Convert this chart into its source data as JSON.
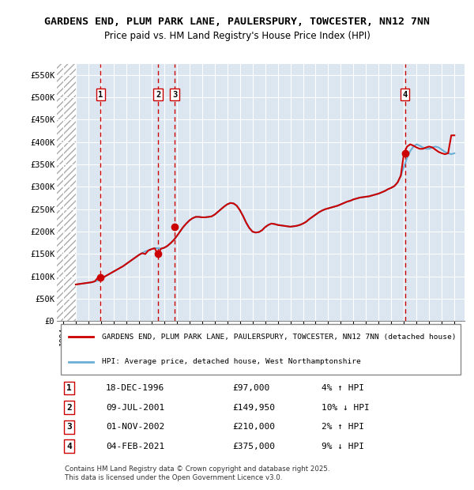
{
  "title_line1": "GARDENS END, PLUM PARK LANE, PAULERSPURY, TOWCESTER, NN12 7NN",
  "title_line2": "Price paid vs. HM Land Registry's House Price Index (HPI)",
  "ylabel": "",
  "background_color": "#dce6f1",
  "plot_bg_color": "#dce6f1",
  "hatch_region_end": 1995.0,
  "ylim": [
    0,
    575000
  ],
  "yticks": [
    0,
    50000,
    100000,
    150000,
    200000,
    250000,
    300000,
    350000,
    400000,
    450000,
    500000,
    550000
  ],
  "xlim": [
    1993.5,
    2025.8
  ],
  "sale_dates": [
    1996.96,
    2001.52,
    2002.84,
    2021.09
  ],
  "sale_prices": [
    97000,
    149950,
    210000,
    375000
  ],
  "sale_labels": [
    "1",
    "2",
    "3",
    "4"
  ],
  "vline_color": "#cc0000",
  "dot_color": "#cc0000",
  "hpi_line_color": "#6baed6",
  "price_line_color": "#cc0000",
  "legend_label_price": "GARDENS END, PLUM PARK LANE, PAULERSPURY, TOWCESTER, NN12 7NN (detached house)",
  "legend_label_hpi": "HPI: Average price, detached house, West Northamptonshire",
  "table_entries": [
    {
      "num": "1",
      "date": "18-DEC-1996",
      "price": "£97,000",
      "hpi": "4% ↑ HPI"
    },
    {
      "num": "2",
      "date": "09-JUL-2001",
      "price": "£149,950",
      "hpi": "10% ↓ HPI"
    },
    {
      "num": "3",
      "date": "01-NOV-2002",
      "price": "£210,000",
      "hpi": "2% ↑ HPI"
    },
    {
      "num": "4",
      "date": "04-FEB-2021",
      "price": "£375,000",
      "hpi": "9% ↓ HPI"
    }
  ],
  "footer": "Contains HM Land Registry data © Crown copyright and database right 2025.\nThis data is licensed under the Open Government Licence v3.0.",
  "hpi_data_x": [
    1995.0,
    1995.25,
    1995.5,
    1995.75,
    1996.0,
    1996.25,
    1996.5,
    1996.75,
    1997.0,
    1997.25,
    1997.5,
    1997.75,
    1998.0,
    1998.25,
    1998.5,
    1998.75,
    1999.0,
    1999.25,
    1999.5,
    1999.75,
    2000.0,
    2000.25,
    2000.5,
    2000.75,
    2001.0,
    2001.25,
    2001.5,
    2001.75,
    2002.0,
    2002.25,
    2002.5,
    2002.75,
    2003.0,
    2003.25,
    2003.5,
    2003.75,
    2004.0,
    2004.25,
    2004.5,
    2004.75,
    2005.0,
    2005.25,
    2005.5,
    2005.75,
    2006.0,
    2006.25,
    2006.5,
    2006.75,
    2007.0,
    2007.25,
    2007.5,
    2007.75,
    2008.0,
    2008.25,
    2008.5,
    2008.75,
    2009.0,
    2009.25,
    2009.5,
    2009.75,
    2010.0,
    2010.25,
    2010.5,
    2010.75,
    2011.0,
    2011.25,
    2011.5,
    2011.75,
    2012.0,
    2012.25,
    2012.5,
    2012.75,
    2013.0,
    2013.25,
    2013.5,
    2013.75,
    2014.0,
    2014.25,
    2014.5,
    2014.75,
    2015.0,
    2015.25,
    2015.5,
    2015.75,
    2016.0,
    2016.25,
    2016.5,
    2016.75,
    2017.0,
    2017.25,
    2017.5,
    2017.75,
    2018.0,
    2018.25,
    2018.5,
    2018.75,
    2019.0,
    2019.25,
    2019.5,
    2019.75,
    2020.0,
    2020.25,
    2020.5,
    2020.75,
    2021.0,
    2021.25,
    2021.5,
    2021.75,
    2022.0,
    2022.25,
    2022.5,
    2022.75,
    2023.0,
    2023.25,
    2023.5,
    2023.75,
    2024.0,
    2024.25,
    2024.5,
    2024.75,
    2025.0
  ],
  "hpi_data_y": [
    82000,
    83000,
    84000,
    85000,
    86000,
    87000,
    89000,
    91000,
    95000,
    99000,
    103000,
    107000,
    111000,
    115000,
    119000,
    123000,
    128000,
    133000,
    138000,
    143000,
    148000,
    152000,
    156000,
    158000,
    161000,
    163000,
    163000,
    162000,
    164000,
    168000,
    174000,
    181000,
    190000,
    200000,
    210000,
    218000,
    225000,
    230000,
    233000,
    233000,
    232000,
    232000,
    233000,
    234000,
    238000,
    244000,
    250000,
    256000,
    261000,
    264000,
    263000,
    258000,
    248000,
    235000,
    220000,
    208000,
    200000,
    198000,
    199000,
    203000,
    210000,
    215000,
    218000,
    217000,
    215000,
    214000,
    213000,
    212000,
    211000,
    212000,
    213000,
    215000,
    218000,
    222000,
    228000,
    233000,
    238000,
    243000,
    247000,
    250000,
    252000,
    254000,
    256000,
    258000,
    261000,
    264000,
    267000,
    269000,
    272000,
    274000,
    276000,
    277000,
    278000,
    279000,
    281000,
    283000,
    285000,
    288000,
    291000,
    295000,
    298000,
    302000,
    310000,
    325000,
    345000,
    365000,
    380000,
    390000,
    395000,
    392000,
    388000,
    385000,
    385000,
    388000,
    390000,
    388000,
    383000,
    378000,
    375000,
    373000,
    375000
  ],
  "price_data_x": [
    1995.0,
    1995.25,
    1995.5,
    1995.75,
    1996.0,
    1996.25,
    1996.5,
    1996.75,
    1997.0,
    1997.25,
    1997.5,
    1997.75,
    1998.0,
    1998.25,
    1998.5,
    1998.75,
    1999.0,
    1999.25,
    1999.5,
    1999.75,
    2000.0,
    2000.25,
    2000.5,
    2000.75,
    2001.0,
    2001.25,
    2001.5,
    2001.75,
    2002.0,
    2002.25,
    2002.5,
    2002.75,
    2003.0,
    2003.25,
    2003.5,
    2003.75,
    2004.0,
    2004.25,
    2004.5,
    2004.75,
    2005.0,
    2005.25,
    2005.5,
    2005.75,
    2006.0,
    2006.25,
    2006.5,
    2006.75,
    2007.0,
    2007.25,
    2007.5,
    2007.75,
    2008.0,
    2008.25,
    2008.5,
    2008.75,
    2009.0,
    2009.25,
    2009.5,
    2009.75,
    2010.0,
    2010.25,
    2010.5,
    2010.75,
    2011.0,
    2011.25,
    2011.5,
    2011.75,
    2012.0,
    2012.25,
    2012.5,
    2012.75,
    2013.0,
    2013.25,
    2013.5,
    2013.75,
    2014.0,
    2014.25,
    2014.5,
    2014.75,
    2015.0,
    2015.25,
    2015.5,
    2015.75,
    2016.0,
    2016.25,
    2016.5,
    2016.75,
    2017.0,
    2017.25,
    2017.5,
    2017.75,
    2018.0,
    2018.25,
    2018.5,
    2018.75,
    2019.0,
    2019.25,
    2019.5,
    2019.75,
    2020.0,
    2020.25,
    2020.5,
    2020.75,
    2021.0,
    2021.25,
    2021.5,
    2021.75,
    2022.0,
    2022.25,
    2022.5,
    2022.75,
    2023.0,
    2023.25,
    2023.5,
    2023.75,
    2024.0,
    2024.25,
    2024.5,
    2024.75,
    2025.0
  ],
  "price_data_y": [
    82000,
    83000,
    84000,
    85000,
    86000,
    87000,
    89000,
    97000,
    95000,
    99000,
    103000,
    107000,
    111000,
    115000,
    119000,
    123000,
    128000,
    133000,
    138000,
    143000,
    148000,
    152000,
    149950,
    158000,
    161000,
    163000,
    149950,
    162000,
    164000,
    168000,
    174000,
    181000,
    190000,
    200000,
    210000,
    218000,
    225000,
    230000,
    233000,
    233000,
    232000,
    232000,
    233000,
    234000,
    238000,
    244000,
    250000,
    256000,
    261000,
    264000,
    263000,
    258000,
    248000,
    235000,
    220000,
    208000,
    200000,
    198000,
    199000,
    203000,
    210000,
    215000,
    218000,
    217000,
    215000,
    214000,
    213000,
    212000,
    211000,
    212000,
    213000,
    215000,
    218000,
    222000,
    228000,
    233000,
    238000,
    243000,
    247000,
    250000,
    252000,
    254000,
    256000,
    258000,
    261000,
    264000,
    267000,
    269000,
    272000,
    274000,
    276000,
    277000,
    278000,
    279000,
    281000,
    283000,
    285000,
    288000,
    291000,
    295000,
    298000,
    302000,
    310000,
    325000,
    375000,
    390000,
    395000,
    392000,
    388000,
    385000,
    385000,
    388000,
    390000,
    388000,
    383000,
    378000,
    375000,
    373000,
    375000,
    415000,
    415000
  ]
}
